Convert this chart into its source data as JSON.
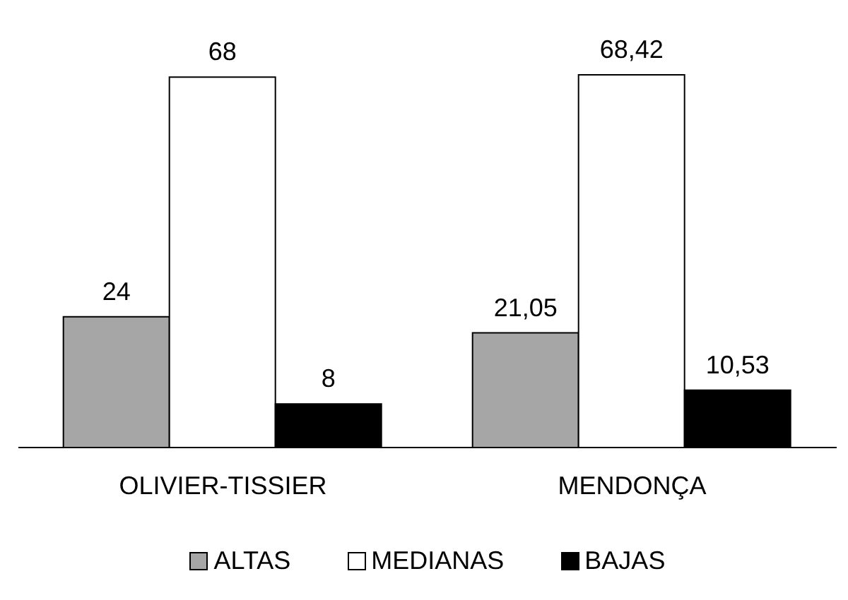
{
  "chart_data": {
    "type": "bar",
    "categories": [
      "OLIVIER-TISSIER",
      "MENDONÇA"
    ],
    "series": [
      {
        "name": "ALTAS",
        "color": "#a6a6a6",
        "values": [
          24,
          21.05
        ],
        "value_labels": [
          "24",
          "21,05"
        ]
      },
      {
        "name": "MEDIANAS",
        "color": "#ffffff",
        "values": [
          68,
          68.42
        ],
        "value_labels": [
          "68",
          "68,42"
        ]
      },
      {
        "name": "BAJAS",
        "color": "#000000",
        "values": [
          8,
          10.53
        ],
        "value_labels": [
          "8",
          "10,53"
        ]
      }
    ],
    "legend": "bottom",
    "grid": false
  }
}
